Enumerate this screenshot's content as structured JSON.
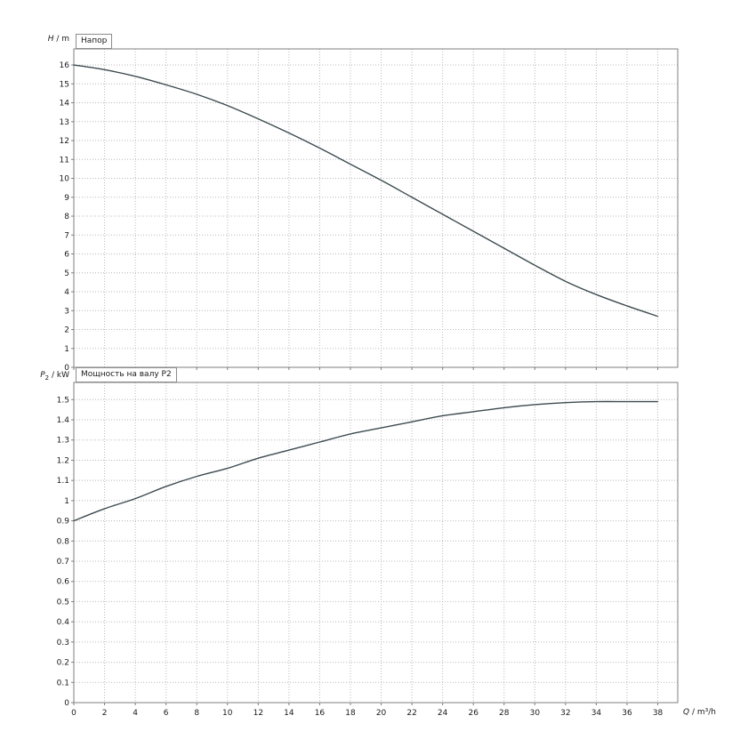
{
  "window": {
    "background": "#ffffff"
  },
  "colors": {
    "grid": "#b8b8b8",
    "axis": "#7f7f7f",
    "curve": "#3d4a50",
    "tick_text": "#1a1a1a"
  },
  "labels": {
    "top_y": {
      "sym": "H",
      "sub": "",
      "unit": " / m"
    },
    "bottom_y": {
      "sym": "P",
      "sub": "2",
      "unit": " / kW"
    },
    "x": {
      "sym": "Q",
      "sub": "",
      "unit": " / m³/h"
    },
    "top_title": "Напор",
    "bottom_title": "Мощность на валу P2"
  },
  "chart_data": [
    {
      "type": "line",
      "name": "head-curve",
      "title": "Напор",
      "ylabel": "H / m",
      "xlabel": "Q / m³/h",
      "x": [
        0,
        2,
        4,
        6,
        8,
        10,
        12,
        14,
        16,
        18,
        20,
        22,
        24,
        26,
        28,
        30,
        32,
        34,
        36,
        38
      ],
      "series": [
        {
          "name": "H",
          "values": [
            16.0,
            15.75,
            15.4,
            14.95,
            14.45,
            13.85,
            13.15,
            12.4,
            11.6,
            10.75,
            9.9,
            9.0,
            8.1,
            7.2,
            6.3,
            5.4,
            4.55,
            3.85,
            3.25,
            2.7
          ]
        }
      ],
      "xlim": [
        0,
        39.3
      ],
      "ylim": [
        0,
        16.85
      ],
      "xtick_step": 2,
      "ytick_step": 1,
      "grid": true,
      "show_x_tick_labels": false
    },
    {
      "type": "line",
      "name": "power-curve",
      "title": "Мощность на валу P2",
      "ylabel": "P2 / kW",
      "xlabel": "Q / m³/h",
      "x": [
        0,
        2,
        4,
        6,
        8,
        10,
        12,
        14,
        16,
        18,
        20,
        22,
        24,
        26,
        28,
        30,
        32,
        34,
        36,
        38
      ],
      "series": [
        {
          "name": "P2",
          "values": [
            0.9,
            0.96,
            1.01,
            1.07,
            1.12,
            1.16,
            1.21,
            1.25,
            1.29,
            1.33,
            1.36,
            1.39,
            1.42,
            1.44,
            1.46,
            1.475,
            1.485,
            1.49,
            1.49,
            1.49
          ]
        }
      ],
      "xlim": [
        0,
        39.3
      ],
      "ylim": [
        0,
        1.585
      ],
      "xtick_step": 2,
      "ytick_step": 0.1,
      "grid": true,
      "show_x_tick_labels": true
    }
  ]
}
